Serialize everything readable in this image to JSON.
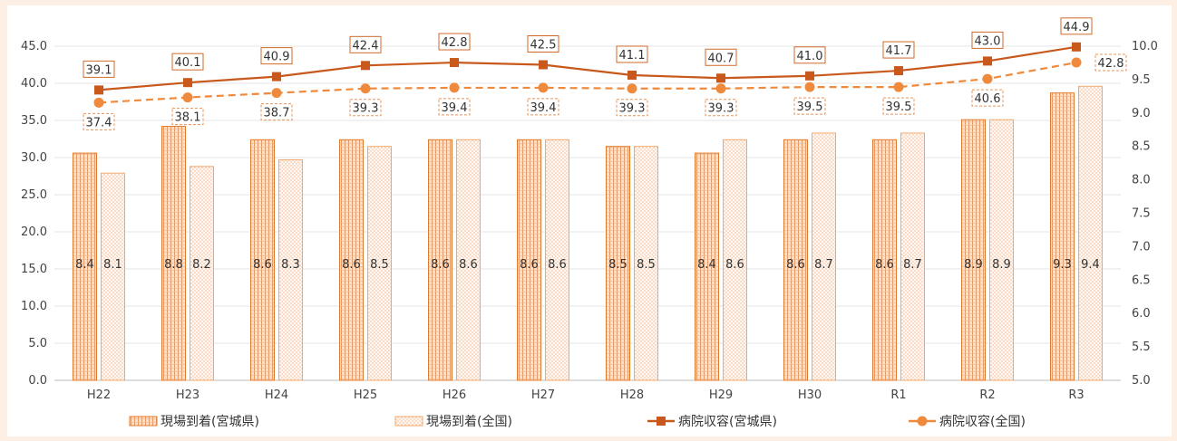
{
  "chart_data": {
    "type": "bar",
    "categories": [
      "H22",
      "H23",
      "H24",
      "H25",
      "H26",
      "H27",
      "H28",
      "H29",
      "H30",
      "R1",
      "R2",
      "R3"
    ],
    "left_axis": {
      "ylim": [
        0,
        45
      ],
      "ticks": [
        "0.0",
        "5.0",
        "10.0",
        "15.0",
        "20.0",
        "25.0",
        "30.0",
        "35.0",
        "40.0",
        "45.0"
      ]
    },
    "right_axis": {
      "ylim": [
        5,
        10
      ],
      "ticks": [
        "5.0",
        "5.5",
        "6.0",
        "6.5",
        "7.0",
        "7.5",
        "8.0",
        "8.5",
        "9.0",
        "9.5",
        "10.0"
      ]
    },
    "series": [
      {
        "name": "現場到着(宮城県)",
        "type": "bar",
        "axis": "right",
        "style": "hatch-dense",
        "color": "#e07b2e",
        "values": [
          8.4,
          8.8,
          8.6,
          8.6,
          8.6,
          8.6,
          8.5,
          8.4,
          8.6,
          8.6,
          8.9,
          9.3
        ],
        "labels": [
          "8.4",
          "8.8",
          "8.6",
          "8.6",
          "8.6",
          "8.6",
          "8.5",
          "8.4",
          "8.6",
          "8.6",
          "8.9",
          "9.3"
        ]
      },
      {
        "name": "現場到着(全国)",
        "type": "bar",
        "axis": "right",
        "style": "dots-light",
        "color": "#f3a86b",
        "values": [
          8.1,
          8.2,
          8.3,
          8.5,
          8.6,
          8.6,
          8.5,
          8.6,
          8.7,
          8.7,
          8.9,
          9.4
        ],
        "labels": [
          "8.1",
          "8.2",
          "8.3",
          "8.5",
          "8.6",
          "8.6",
          "8.5",
          "8.6",
          "8.7",
          "8.7",
          "8.9",
          "9.4"
        ]
      },
      {
        "name": "病院収容(宮城県)",
        "type": "line",
        "axis": "left",
        "style": "solid-square",
        "color": "#c8581c",
        "values": [
          39.1,
          40.1,
          40.9,
          42.4,
          42.8,
          42.5,
          41.1,
          40.7,
          41.0,
          41.7,
          43.0,
          44.9
        ],
        "labels": [
          "39.1",
          "40.1",
          "40.9",
          "42.4",
          "42.8",
          "42.5",
          "41.1",
          "40.7",
          "41.0",
          "41.7",
          "43.0",
          "44.9"
        ]
      },
      {
        "name": "病院収容(全国)",
        "type": "line",
        "axis": "left",
        "style": "dashed-circle",
        "color": "#ef8a3c",
        "values": [
          37.4,
          38.1,
          38.7,
          39.3,
          39.4,
          39.4,
          39.3,
          39.3,
          39.5,
          39.5,
          40.6,
          42.8
        ],
        "labels": [
          "37.4",
          "38.1",
          "38.7",
          "39.3",
          "39.4",
          "39.4",
          "39.3",
          "39.3",
          "39.5",
          "39.5",
          "40.6",
          "42.8"
        ]
      }
    ],
    "grid": true,
    "legend_position": "bottom"
  }
}
